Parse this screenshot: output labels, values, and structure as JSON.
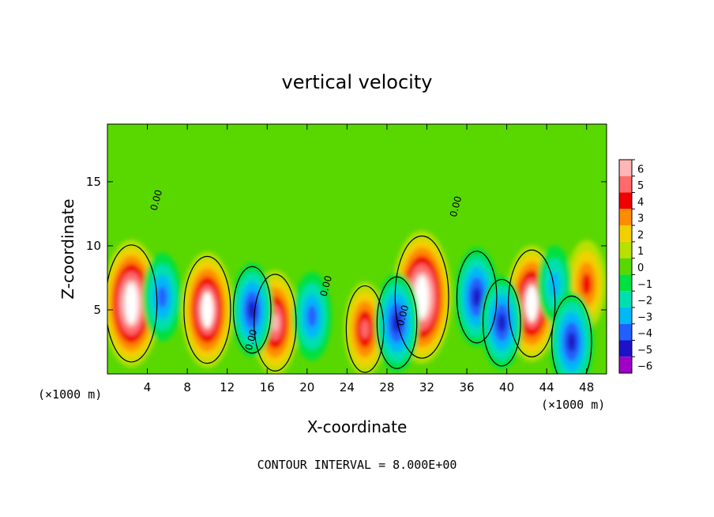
{
  "chart_data": {
    "type": "heatmap",
    "title": "vertical velocity",
    "xlabel": "X-coordinate",
    "ylabel": "Z-coordinate",
    "x_unit_left": "(×1000 m)",
    "x_unit_right": "(×1000 m)",
    "footer": "CONTOUR INTERVAL = 8.000E+00",
    "xlim": [
      0,
      50
    ],
    "ylim": [
      0,
      19.5
    ],
    "x_ticks": [
      4,
      8,
      12,
      16,
      20,
      24,
      28,
      32,
      36,
      40,
      44,
      48
    ],
    "x_tick_labels": [
      "4",
      "8",
      "12",
      "16",
      "20",
      "24",
      "28",
      "32",
      "36",
      "40",
      "44",
      "48"
    ],
    "y_ticks": [
      5,
      10,
      15
    ],
    "y_tick_labels": [
      "5",
      "10",
      "15"
    ],
    "colorbar": {
      "levels": [
        6,
        5,
        4,
        3,
        2,
        1,
        0,
        -1,
        -2,
        -3,
        -4,
        -5,
        -6
      ],
      "labels": [
        "6",
        "5",
        "4",
        "3",
        "2",
        "1",
        "0",
        "−1",
        "−2",
        "−3",
        "−4",
        "−5",
        "−6"
      ],
      "colors": [
        "#ffb6b6",
        "#ff6a6a",
        "#f00000",
        "#ff8c00",
        "#f2d000",
        "#b8e000",
        "#59d800",
        "#00e040",
        "#00dfb0",
        "#00b8f8",
        "#2060ff",
        "#1c12c8",
        "#a000c8"
      ]
    },
    "contour_labels": [
      {
        "text": "0.00",
        "x": 5.2,
        "y": 13.5
      },
      {
        "text": "0.00",
        "x": 14.7,
        "y": 2.6
      },
      {
        "text": "0.00",
        "x": 22.2,
        "y": 6.8
      },
      {
        "text": "0.00",
        "x": 29.9,
        "y": 4.5
      },
      {
        "text": "0.00",
        "x": 35.2,
        "y": 13.0
      }
    ],
    "features": [
      {
        "x": 2.4,
        "z": 5.5,
        "w": 7.5,
        "kind": "updraft core"
      },
      {
        "x": 10.0,
        "z": 5.0,
        "w": 6.5,
        "kind": "updraft core"
      },
      {
        "x": 16.8,
        "z": 4.0,
        "w": 5.5,
        "kind": "updraft"
      },
      {
        "x": 31.5,
        "z": 6.0,
        "w": 8.0,
        "kind": "updraft core"
      },
      {
        "x": 42.5,
        "z": 5.5,
        "w": 6.5,
        "kind": "updraft core"
      },
      {
        "x": 25.8,
        "z": 3.5,
        "w": 4.5,
        "kind": "updraft"
      },
      {
        "x": 48.0,
        "z": 7.0,
        "w": 4.0,
        "kind": "updraft"
      },
      {
        "x": 5.5,
        "z": 6.0,
        "w": -4.0,
        "kind": "downdraft"
      },
      {
        "x": 14.5,
        "z": 5.0,
        "w": -4.5,
        "kind": "downdraft"
      },
      {
        "x": 20.5,
        "z": 4.5,
        "w": -4.0,
        "kind": "downdraft"
      },
      {
        "x": 29.0,
        "z": 4.0,
        "w": -5.0,
        "kind": "downdraft"
      },
      {
        "x": 37.0,
        "z": 6.0,
        "w": -5.0,
        "kind": "downdraft"
      },
      {
        "x": 39.5,
        "z": 4.0,
        "w": -4.5,
        "kind": "downdraft"
      },
      {
        "x": 44.8,
        "z": 7.0,
        "w": -3.0,
        "kind": "downdraft"
      },
      {
        "x": 46.5,
        "z": 2.5,
        "w": -5.0,
        "kind": "downdraft"
      }
    ]
  }
}
